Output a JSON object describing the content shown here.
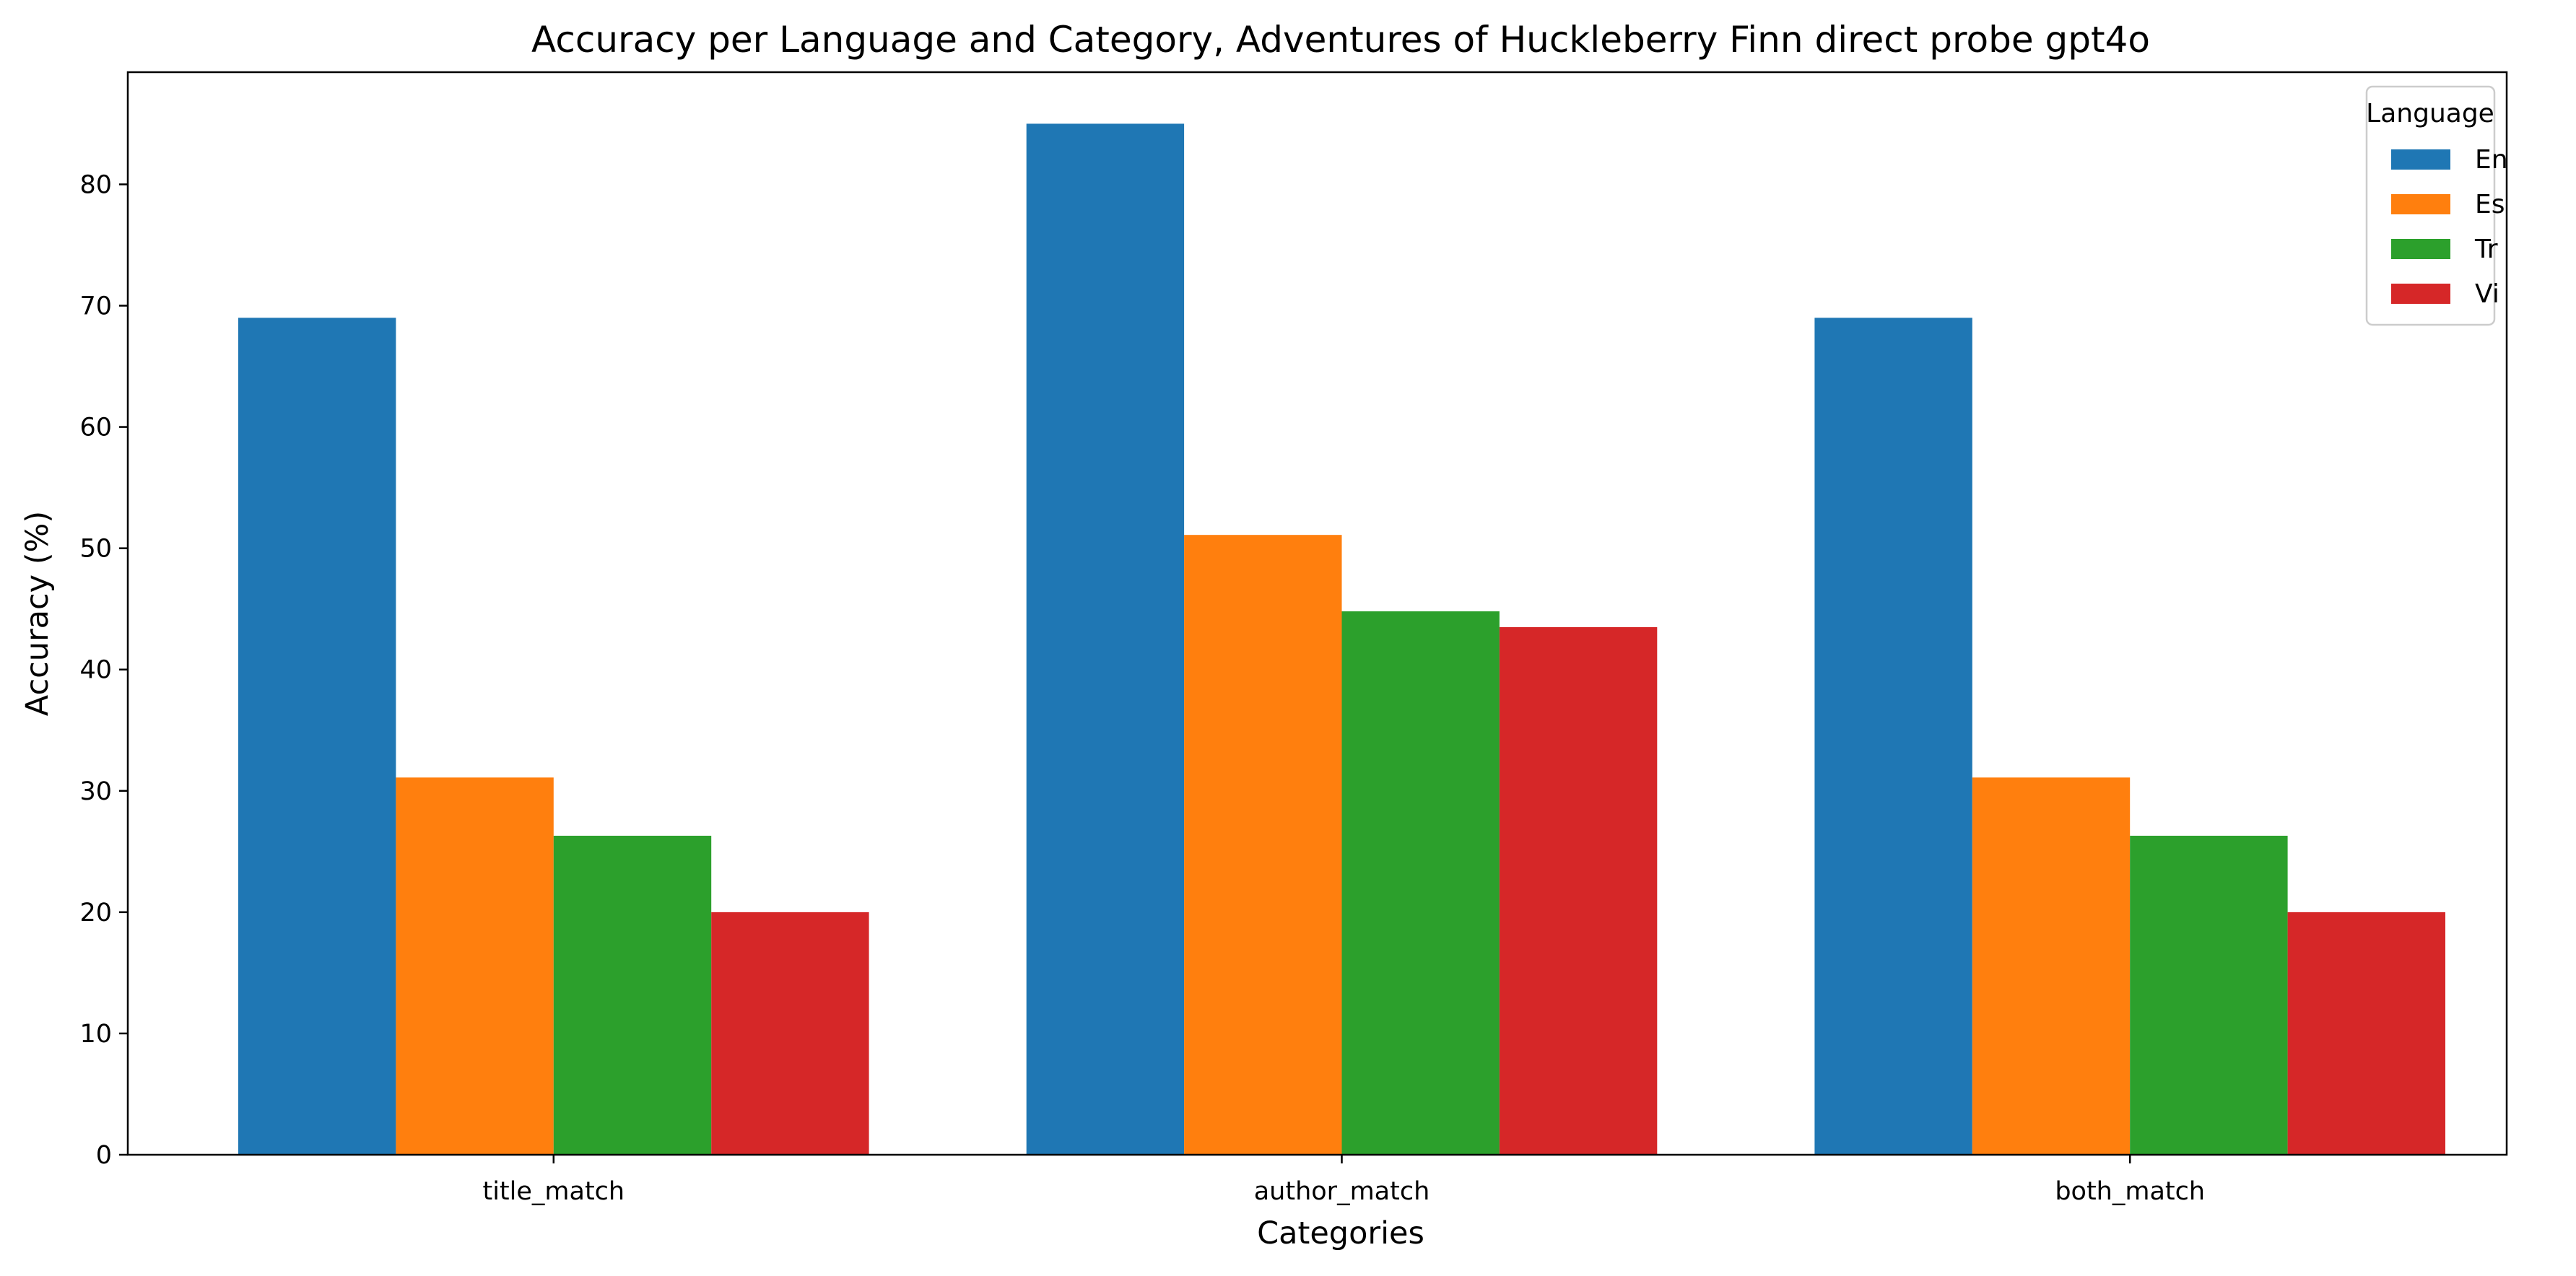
{
  "chart_data": {
    "type": "bar",
    "title": "Accuracy per Language and Category, Adventures of Huckleberry Finn direct probe gpt4o",
    "xlabel": "Categories",
    "ylabel": "Accuracy (%)",
    "categories": [
      "title_match",
      "author_match",
      "both_match"
    ],
    "series": [
      {
        "name": "En",
        "color": "#1f77b4",
        "values": [
          69,
          85,
          69
        ]
      },
      {
        "name": "Es",
        "color": "#ff7f0e",
        "values": [
          31.1,
          51.1,
          31.1
        ]
      },
      {
        "name": "Tr",
        "color": "#2ca02c",
        "values": [
          26.3,
          44.8,
          26.3
        ]
      },
      {
        "name": "Vi",
        "color": "#d62728",
        "values": [
          20,
          43.5,
          20
        ]
      }
    ],
    "ylim": [
      0,
      89.25
    ],
    "yticks": [
      0,
      10,
      20,
      30,
      40,
      50,
      60,
      70,
      80
    ],
    "grid": false,
    "legend": {
      "title": "Language",
      "placement": "top-right"
    }
  }
}
